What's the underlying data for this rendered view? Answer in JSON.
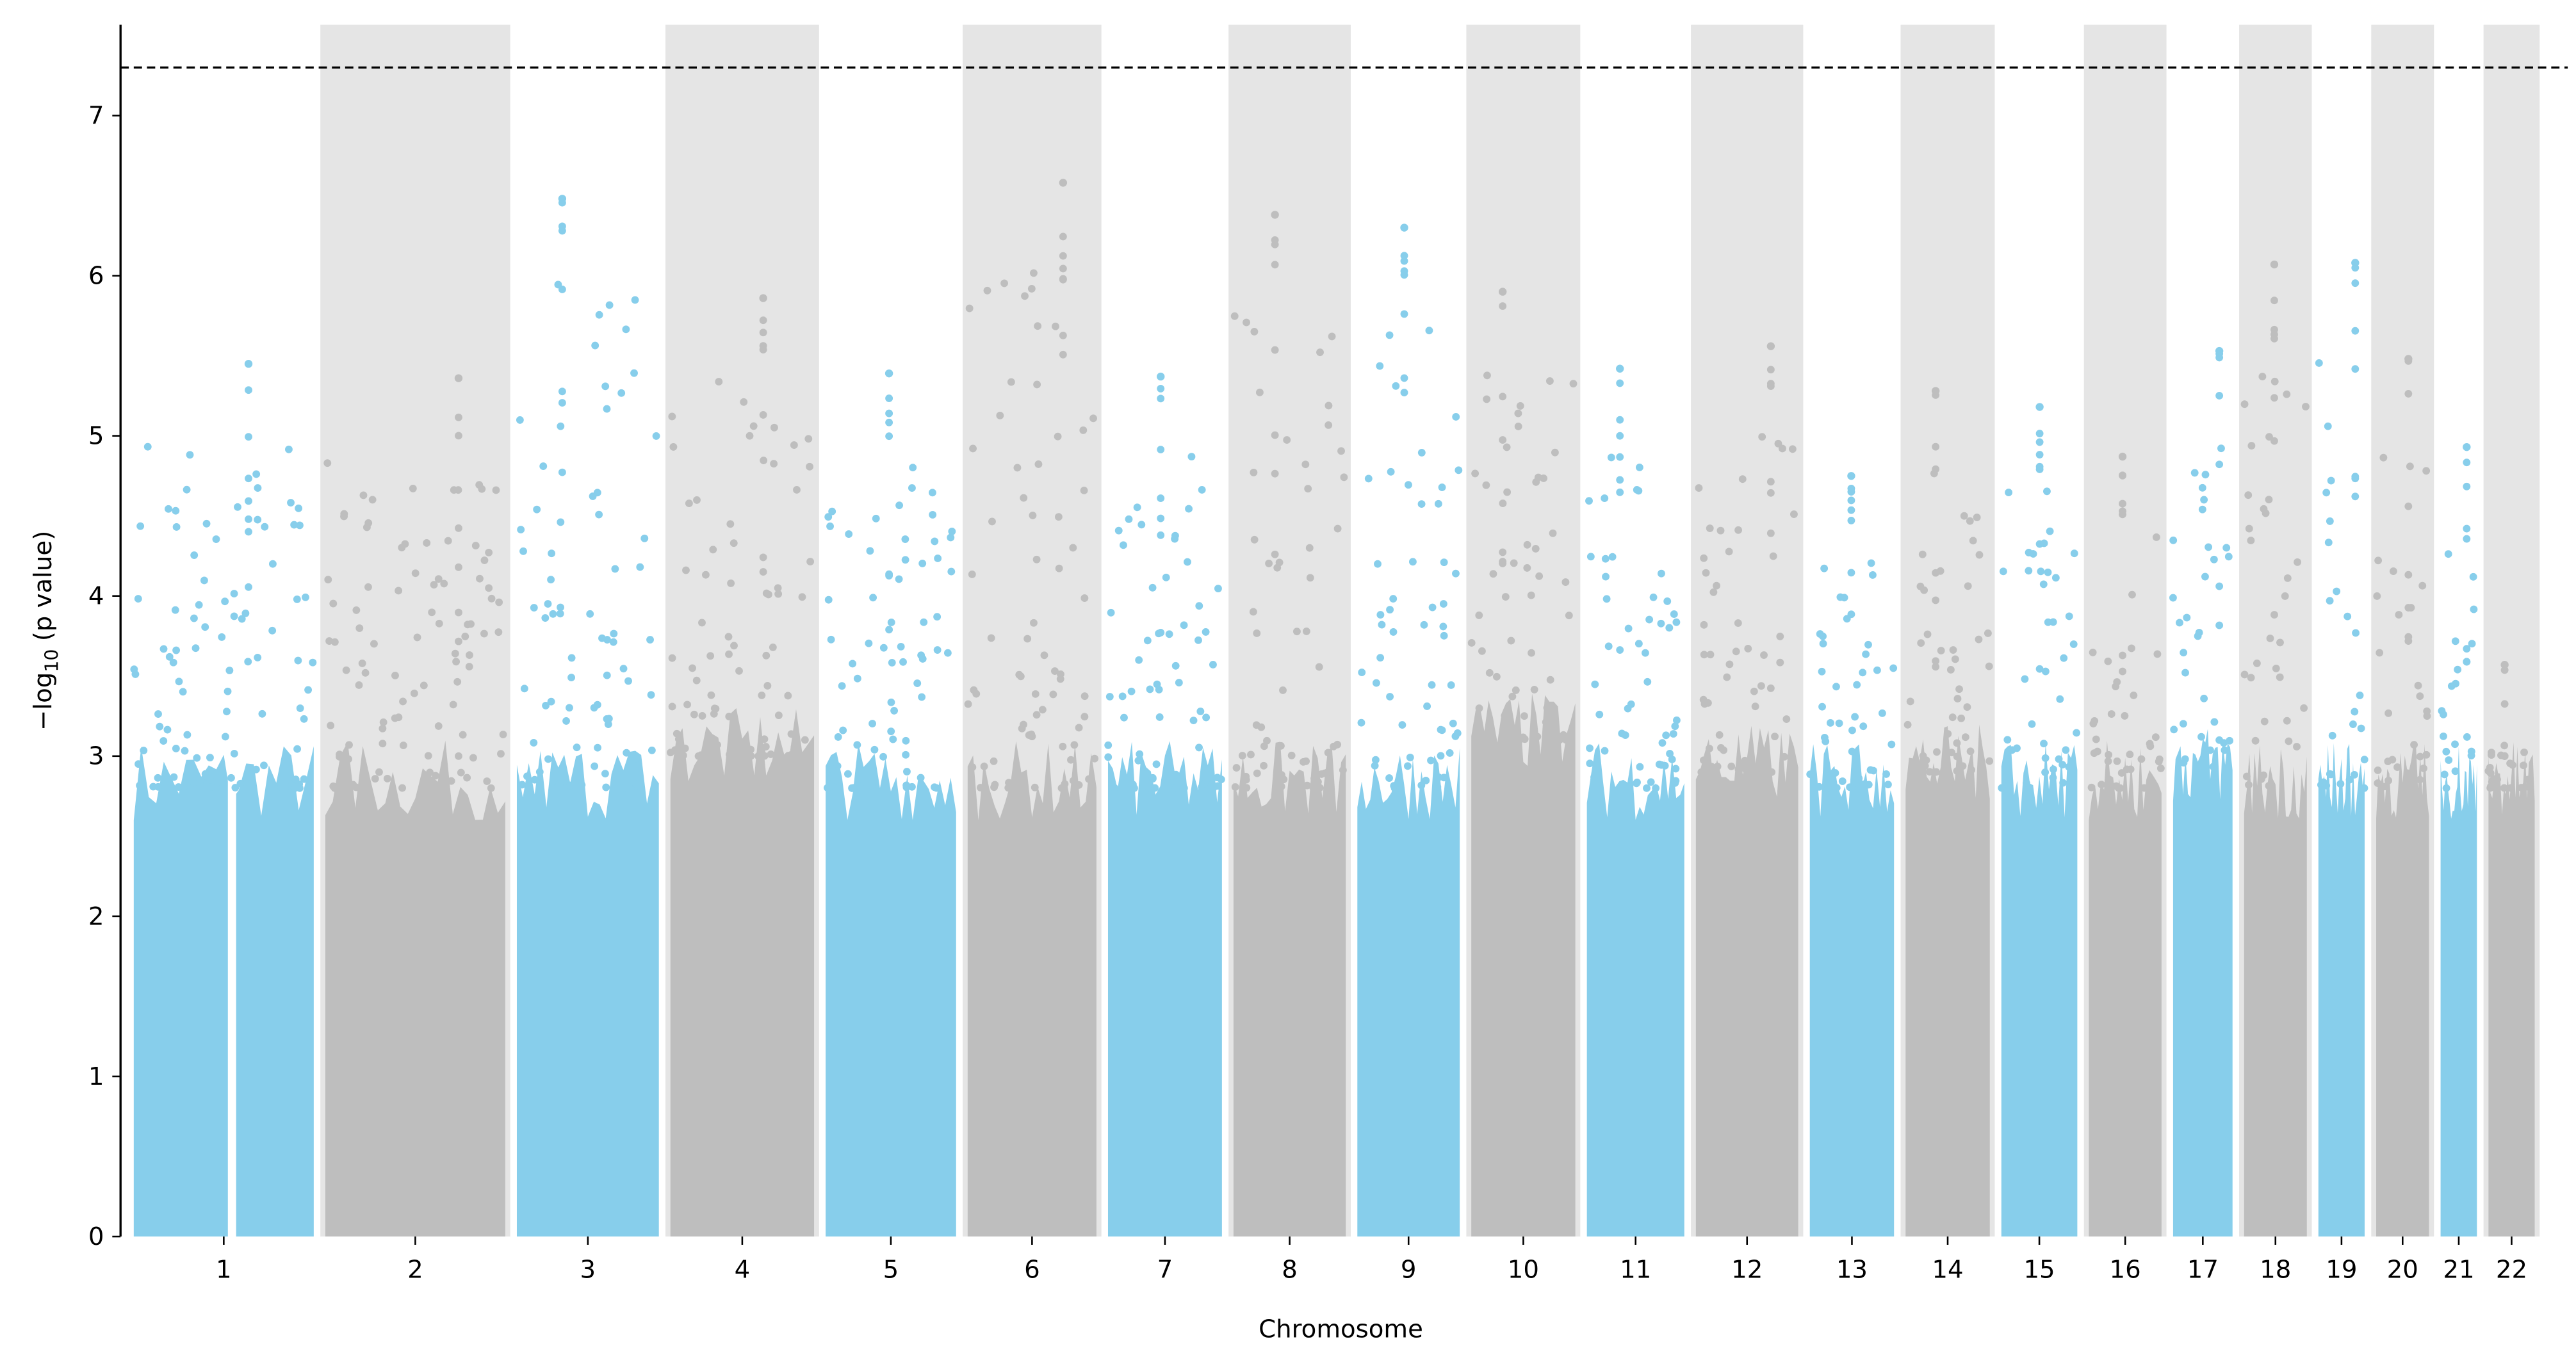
{
  "chart_data": {
    "type": "scatter",
    "subtype": "manhattan",
    "title": "",
    "xlabel": "Chromosome",
    "ylabel_prefix": "−log",
    "ylabel_sub": "10",
    "ylabel_suffix": " (p value)",
    "ylim": [
      0,
      7.6
    ],
    "yticks": [
      0,
      1,
      2,
      3,
      4,
      5,
      6,
      7
    ],
    "significance_threshold": 7.3,
    "colors": {
      "odd": "#87CEEB",
      "even": "#BEBEBE",
      "band": "#E5E5E5",
      "threshold": "#000000"
    },
    "chromosomes": [
      {
        "label": "1",
        "peak": 5.45,
        "bulk": 3.0
      },
      {
        "label": "2",
        "peak": 5.36,
        "bulk": 3.0
      },
      {
        "label": "3",
        "peak": 6.48,
        "bulk": 3.0
      },
      {
        "label": "4",
        "peak": 5.86,
        "bulk": 3.2
      },
      {
        "label": "5",
        "peak": 5.39,
        "bulk": 3.0
      },
      {
        "label": "6",
        "peak": 6.58,
        "bulk": 3.0
      },
      {
        "label": "7",
        "peak": 5.37,
        "bulk": 3.0
      },
      {
        "label": "8",
        "peak": 6.38,
        "bulk": 3.0
      },
      {
        "label": "9",
        "peak": 6.3,
        "bulk": 3.0
      },
      {
        "label": "10",
        "peak": 5.9,
        "bulk": 3.3
      },
      {
        "label": "11",
        "peak": 5.42,
        "bulk": 3.0
      },
      {
        "label": "12",
        "peak": 5.56,
        "bulk": 3.1
      },
      {
        "label": "13",
        "peak": 4.75,
        "bulk": 3.0
      },
      {
        "label": "14",
        "peak": 5.28,
        "bulk": 3.1
      },
      {
        "label": "15",
        "peak": 5.18,
        "bulk": 3.0
      },
      {
        "label": "16",
        "peak": 4.87,
        "bulk": 3.0
      },
      {
        "label": "17",
        "peak": 5.53,
        "bulk": 3.1
      },
      {
        "label": "18",
        "peak": 6.07,
        "bulk": 3.0
      },
      {
        "label": "19",
        "peak": 6.08,
        "bulk": 3.0
      },
      {
        "label": "20",
        "peak": 5.48,
        "bulk": 3.0
      },
      {
        "label": "21",
        "peak": 4.93,
        "bulk": 3.0
      },
      {
        "label": "22",
        "peak": 3.57,
        "bulk": 3.0
      }
    ]
  }
}
